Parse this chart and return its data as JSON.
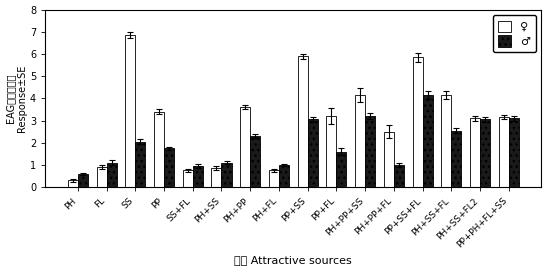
{
  "categories": [
    "PH",
    "FL",
    "SS",
    "PP",
    "SS+FL",
    "PH+SS",
    "PH+PP",
    "PH+FL",
    "PP+SS",
    "PP+FL",
    "PH+PP+SS",
    "PH+PP+FL",
    "PP+SS+FL",
    "PH+SS+FL",
    "PH+SS+FL2",
    "PP+PH+FL+SS"
  ],
  "female_values": [
    0.3,
    0.9,
    6.85,
    3.4,
    0.75,
    0.85,
    3.6,
    0.75,
    5.9,
    3.2,
    4.15,
    2.5,
    5.85,
    4.15,
    3.1,
    3.15
  ],
  "male_values": [
    0.6,
    1.1,
    2.05,
    1.75,
    0.95,
    1.1,
    2.3,
    1.0,
    3.05,
    1.6,
    3.2,
    1.0,
    4.15,
    2.55,
    3.05,
    3.1
  ],
  "female_err": [
    0.05,
    0.1,
    0.15,
    0.1,
    0.08,
    0.08,
    0.1,
    0.05,
    0.12,
    0.35,
    0.3,
    0.3,
    0.2,
    0.2,
    0.1,
    0.1
  ],
  "male_err": [
    0.05,
    0.1,
    0.1,
    0.08,
    0.08,
    0.08,
    0.1,
    0.05,
    0.1,
    0.15,
    0.15,
    0.1,
    0.2,
    0.1,
    0.1,
    0.1
  ],
  "xlabel": "诱源 Attractive sources",
  "ylabel": "EAG反应绝对值\nResponse±SE",
  "ylim": [
    0,
    8
  ],
  "yticks": [
    0,
    1,
    2,
    3,
    4,
    5,
    6,
    7,
    8
  ],
  "female_color": "#ffffff",
  "male_color": "#1a1a1a",
  "female_hatch": "",
  "male_hatch": "...",
  "bar_edge_color": "#000000",
  "legend_female": "♀",
  "legend_male": "♂",
  "figsize": [
    5.47,
    2.71
  ],
  "dpi": 100
}
